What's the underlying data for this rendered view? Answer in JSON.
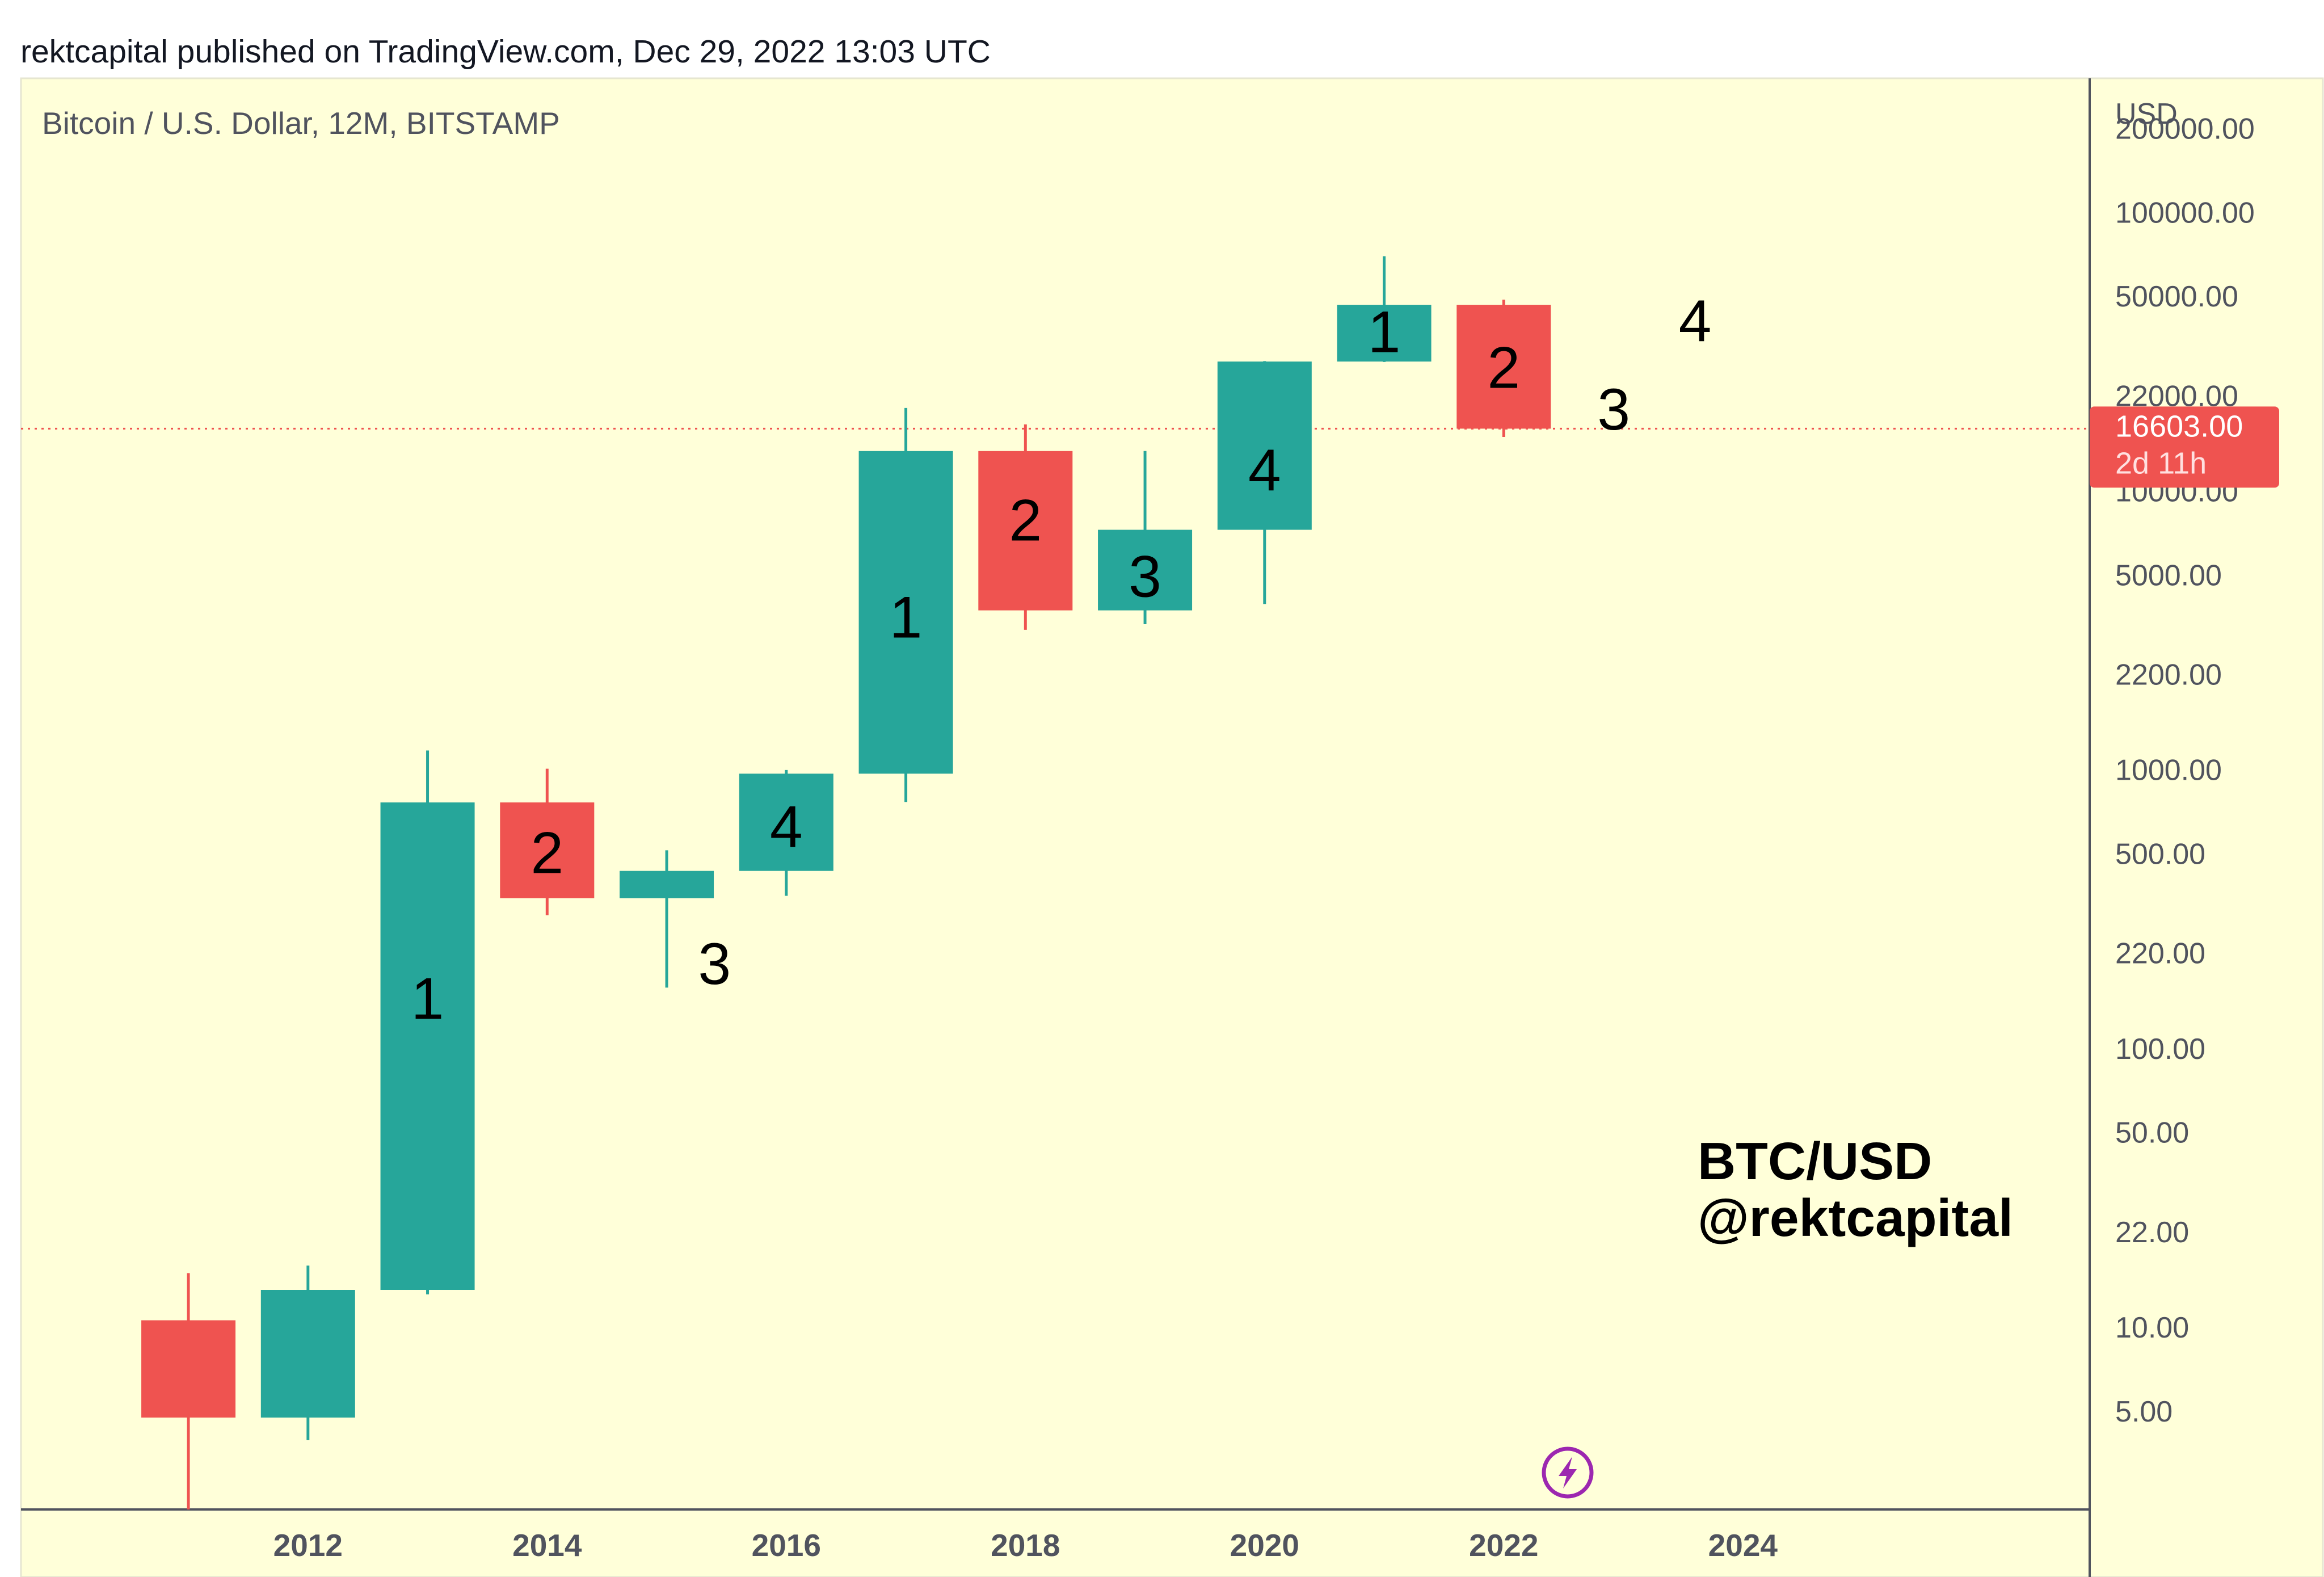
{
  "header": {
    "published": "rektcapital published on TradingView.com, Dec 29, 2022 13:03 UTC"
  },
  "symbol_label": "Bitcoin / U.S. Dollar, 12M, BITSTAMP",
  "watermark": {
    "line1": "BTC/USD",
    "line2": "@rektcapital"
  },
  "price_scale": {
    "currency": "USD"
  },
  "current_price": {
    "value": "16603.00",
    "countdown": "2d 11h"
  },
  "colors": {
    "up": "#26a69a",
    "down": "#ef5350",
    "background": "#ffffd9",
    "axis_text": "#50535e"
  },
  "icons": {
    "logo": "lightning-bolt-icon"
  },
  "chart_data": {
    "type": "candlestick",
    "y_scale": "log",
    "ylim": [
      2.2,
      300000
    ],
    "y_ticks": [
      {
        "value": 200000,
        "label": "200000.00"
      },
      {
        "value": 100000,
        "label": "100000.00"
      },
      {
        "value": 50000,
        "label": "50000.00"
      },
      {
        "value": 22000,
        "label": "22000.00"
      },
      {
        "value": 10000,
        "label": "10000.00"
      },
      {
        "value": 5000,
        "label": "5000.00"
      },
      {
        "value": 2200,
        "label": "2200.00"
      },
      {
        "value": 1000,
        "label": "1000.00"
      },
      {
        "value": 500,
        "label": "500.00"
      },
      {
        "value": 220,
        "label": "220.00"
      },
      {
        "value": 100,
        "label": "100.00"
      },
      {
        "value": 50,
        "label": "50.00"
      },
      {
        "value": 22,
        "label": "22.00"
      },
      {
        "value": 10,
        "label": "10.00"
      },
      {
        "value": 5,
        "label": "5.00"
      }
    ],
    "x_range": [
      2009.6,
      2026.9
    ],
    "x_ticks": [
      {
        "value": 2012,
        "label": "2012"
      },
      {
        "value": 2014,
        "label": "2014"
      },
      {
        "value": 2016,
        "label": "2016"
      },
      {
        "value": 2018,
        "label": "2018"
      },
      {
        "value": 2020,
        "label": "2020"
      },
      {
        "value": 2022,
        "label": "2022"
      },
      {
        "value": 2024,
        "label": "2024"
      }
    ],
    "candles": [
      {
        "year": 2011,
        "open": 10.5,
        "high": 15.5,
        "low": 2.2,
        "close": 4.7
      },
      {
        "year": 2012,
        "open": 4.7,
        "high": 16.5,
        "low": 3.9,
        "close": 13.5
      },
      {
        "year": 2013,
        "open": 13.5,
        "high": 1163,
        "low": 13.0,
        "close": 757
      },
      {
        "year": 2014,
        "open": 757,
        "high": 1000,
        "low": 298,
        "close": 343
      },
      {
        "year": 2015,
        "open": 343,
        "high": 510,
        "low": 164,
        "close": 430
      },
      {
        "year": 2016,
        "open": 430,
        "high": 990,
        "low": 350,
        "close": 960
      },
      {
        "year": 2017,
        "open": 960,
        "high": 19700,
        "low": 760,
        "close": 13800
      },
      {
        "year": 2018,
        "open": 13800,
        "high": 17200,
        "low": 3150,
        "close": 3700
      },
      {
        "year": 2019,
        "open": 3700,
        "high": 13800,
        "low": 3300,
        "close": 7200
      },
      {
        "year": 2020,
        "open": 7200,
        "high": 29000,
        "low": 3900,
        "close": 28900
      },
      {
        "year": 2021,
        "open": 28900,
        "high": 69000,
        "low": 28800,
        "close": 46200
      },
      {
        "year": 2022,
        "open": 46200,
        "high": 48200,
        "low": 15500,
        "close": 16603
      }
    ],
    "annotations": [
      {
        "label": "1",
        "year": 2013,
        "price": 150
      },
      {
        "label": "2",
        "year": 2014,
        "price": 500
      },
      {
        "label": "3",
        "year": 2015.4,
        "price": 200
      },
      {
        "label": "4",
        "year": 2016,
        "price": 620
      },
      {
        "label": "1",
        "year": 2017,
        "price": 3500
      },
      {
        "label": "2",
        "year": 2018,
        "price": 7800
      },
      {
        "label": "3",
        "year": 2019,
        "price": 4900
      },
      {
        "label": "4",
        "year": 2020,
        "price": 11800
      },
      {
        "label": "1",
        "year": 2021,
        "price": 37000
      },
      {
        "label": "2",
        "year": 2022,
        "price": 27500
      },
      {
        "label": "3",
        "year": 2022.92,
        "price": 19500
      },
      {
        "label": "4",
        "year": 2023.6,
        "price": 40500
      }
    ]
  }
}
